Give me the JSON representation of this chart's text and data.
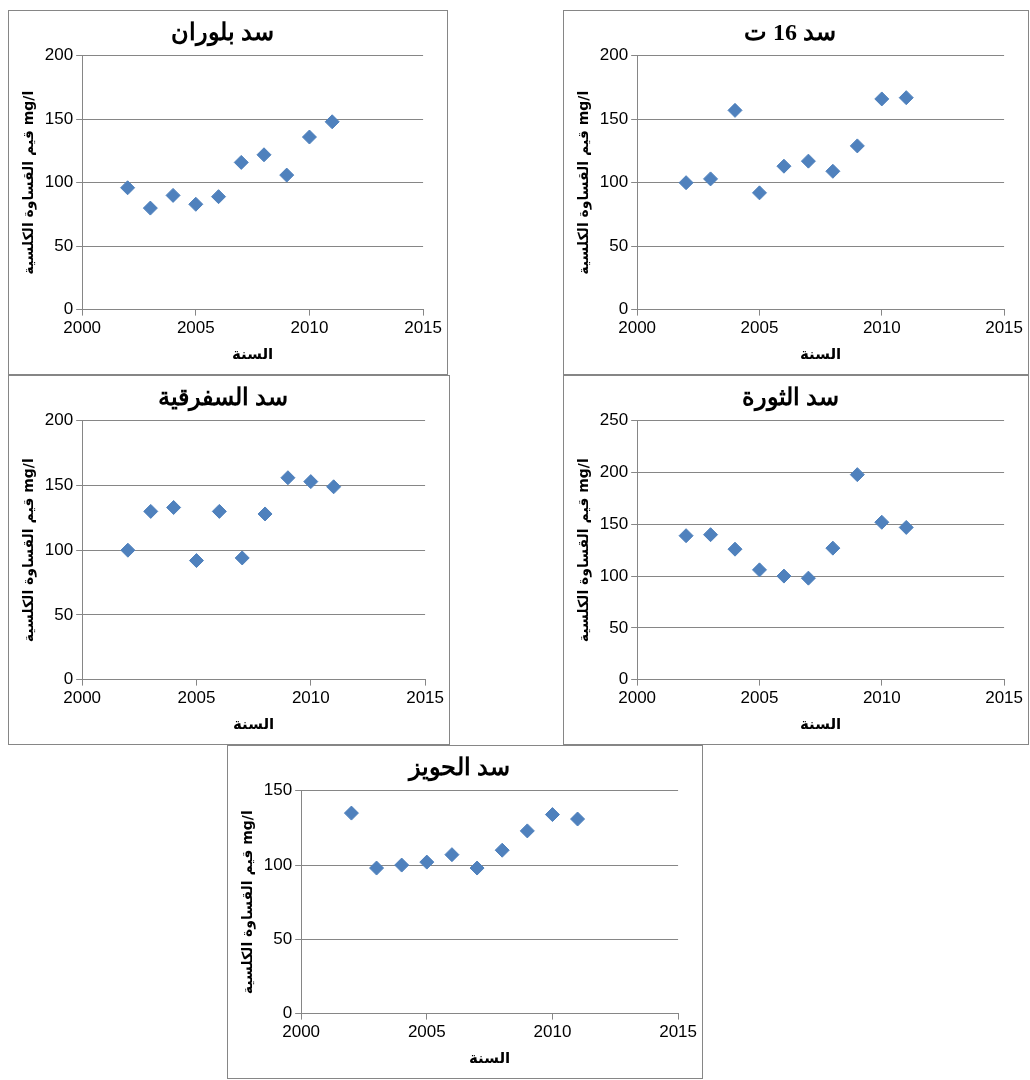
{
  "chart_data": [
    {
      "type": "scatter",
      "title": "سد بلوران",
      "xlabel": "السنة",
      "ylabel": "قيم القساوة الكلسية mg/l",
      "x": [
        2002,
        2003,
        2004,
        2005,
        2006,
        2007,
        2008,
        2009,
        2010,
        2011
      ],
      "values": [
        96,
        80,
        90,
        83,
        89,
        116,
        122,
        106,
        136,
        148
      ],
      "color": "#4f81bd",
      "marker": "diamond",
      "xlim": [
        2000,
        2015
      ],
      "xticks": [
        2000,
        2005,
        2010,
        2015
      ],
      "ylim": [
        0,
        200
      ],
      "yticks": [
        0,
        50,
        100,
        150,
        200
      ],
      "grid": "y"
    },
    {
      "type": "scatter",
      "title": "سد 16 ت",
      "xlabel": "السنة",
      "ylabel": "قيم القساوة الكلسية mg/l",
      "x": [
        2002,
        2003,
        2004,
        2005,
        2006,
        2007,
        2008,
        2009,
        2010,
        2011
      ],
      "values": [
        100,
        103,
        157,
        92,
        113,
        117,
        109,
        129,
        166,
        167
      ],
      "color": "#4f81bd",
      "marker": "diamond",
      "xlim": [
        2000,
        2015
      ],
      "xticks": [
        2000,
        2005,
        2010,
        2015
      ],
      "ylim": [
        0,
        200
      ],
      "yticks": [
        0,
        50,
        100,
        150,
        200
      ],
      "grid": "y"
    },
    {
      "type": "scatter",
      "title": "سد السفرقية",
      "xlabel": "السنة",
      "ylabel": "قيم القساوة الكلسية mg/l",
      "x": [
        2002,
        2003,
        2004,
        2005,
        2006,
        2007,
        2008,
        2009,
        2010,
        2011
      ],
      "values": [
        100,
        130,
        133,
        92,
        130,
        94,
        128,
        156,
        153,
        149
      ],
      "color": "#4f81bd",
      "marker": "diamond",
      "xlim": [
        2000,
        2015
      ],
      "xticks": [
        2000,
        2005,
        2010,
        2015
      ],
      "ylim": [
        0,
        200
      ],
      "yticks": [
        0,
        50,
        100,
        150,
        200
      ],
      "grid": "y"
    },
    {
      "type": "scatter",
      "title": "سد الثورة",
      "xlabel": "السنة",
      "ylabel": "قيم القساوة الكلسية mg/l",
      "x": [
        2002,
        2003,
        2004,
        2005,
        2006,
        2007,
        2008,
        2009,
        2010,
        2011
      ],
      "values": [
        139,
        140,
        126,
        106,
        100,
        98,
        127,
        198,
        152,
        147
      ],
      "color": "#4f81bd",
      "marker": "diamond",
      "xlim": [
        2000,
        2015
      ],
      "xticks": [
        2000,
        2005,
        2010,
        2015
      ],
      "ylim": [
        0,
        250
      ],
      "yticks": [
        0,
        50,
        100,
        150,
        200,
        250
      ],
      "grid": "y"
    },
    {
      "type": "scatter",
      "title": "سد الحويز",
      "xlabel": "السنة",
      "ylabel": "قيم القساوة الكلسية mg/l",
      "x": [
        2002,
        2003,
        2004,
        2005,
        2006,
        2007,
        2008,
        2009,
        2010,
        2011
      ],
      "values": [
        135,
        98,
        100,
        102,
        107,
        98,
        110,
        123,
        134,
        131
      ],
      "color": "#4f81bd",
      "marker": "diamond",
      "xlim": [
        2000,
        2015
      ],
      "xticks": [
        2000,
        2005,
        2010,
        2015
      ],
      "ylim": [
        0,
        150
      ],
      "yticks": [
        0,
        50,
        100,
        150
      ],
      "grid": "y"
    }
  ]
}
